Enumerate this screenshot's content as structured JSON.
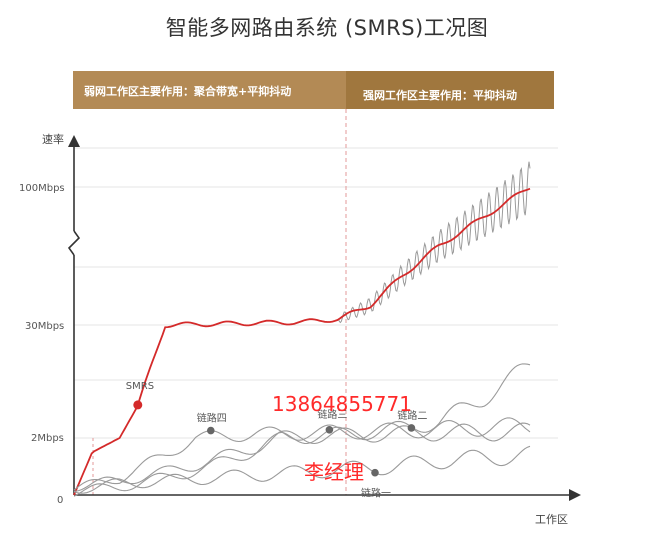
{
  "title": "智能多网路由系统 (SMRS)工况图",
  "bands": {
    "left": "弱网工作区主要作用：聚合带宽+平抑抖动",
    "right": "强网工作区主要作用：平抑抖动"
  },
  "watermark": {
    "phone": "13864855771",
    "name": "李经理"
  },
  "colors": {
    "smrs": "#d42a2a",
    "link": "#9a9a9a",
    "band_left": "#b38a55",
    "band_right": "#a0773e",
    "divider": "#e39a9a"
  },
  "chart_data": {
    "type": "line",
    "title": "智能多网路由系统 (SMRS)工况图",
    "xlabel": "工作区",
    "ylabel": "速率",
    "y_ticks": [
      "0",
      "2Mbps",
      "30Mbps",
      "100Mbps"
    ],
    "y_axis_broken": true,
    "divider_x": 0.58,
    "series": [
      {
        "name": "SMRS",
        "color": "#d42a2a",
        "x": [
          0.0,
          0.04,
          0.1,
          0.14,
          0.2,
          0.3,
          0.4,
          0.5,
          0.58,
          0.65,
          0.72,
          0.8,
          0.9,
          1.0
        ],
        "y": [
          0.0,
          1.5,
          2.0,
          10.0,
          30.0,
          30.5,
          31.0,
          31.5,
          33.0,
          40.0,
          55.0,
          70.0,
          85.0,
          100.0
        ]
      },
      {
        "name": "链路一",
        "color": "#9a9a9a",
        "x": [
          0.0,
          0.1,
          0.2,
          0.3,
          0.4,
          0.5,
          0.58,
          0.7,
          0.8,
          0.9,
          1.0
        ],
        "y": [
          0.2,
          0.4,
          0.5,
          0.6,
          0.7,
          0.8,
          0.9,
          1.0,
          1.2,
          1.3,
          1.4
        ]
      },
      {
        "name": "链路二",
        "color": "#9a9a9a",
        "x": [
          0.0,
          0.1,
          0.2,
          0.3,
          0.4,
          0.5,
          0.58,
          0.7,
          0.8,
          0.9,
          1.0
        ],
        "y": [
          0.3,
          0.5,
          0.8,
          1.2,
          1.7,
          2.3,
          2.6,
          3.0,
          3.3,
          3.4,
          3.5
        ]
      },
      {
        "name": "链路三",
        "color": "#9a9a9a",
        "x": [
          0.0,
          0.1,
          0.2,
          0.3,
          0.4,
          0.5,
          0.58,
          0.7,
          0.8,
          0.9,
          1.0
        ],
        "y": [
          0.1,
          0.3,
          0.6,
          1.0,
          1.6,
          2.3,
          2.9,
          4.0,
          6.0,
          12.0,
          20.0
        ]
      },
      {
        "name": "链路四",
        "color": "#9a9a9a",
        "x": [
          0.0,
          0.1,
          0.2,
          0.3,
          0.4,
          0.5,
          0.58,
          0.7,
          0.8,
          0.9,
          1.0
        ],
        "y": [
          0.2,
          0.6,
          1.4,
          2.3,
          3.0,
          3.2,
          3.5,
          3.8,
          4.2,
          4.6,
          5.0
        ]
      }
    ],
    "markers": [
      {
        "label": "SMRS",
        "series": "SMRS",
        "x": 0.14
      },
      {
        "label": "链路四",
        "series": "链路四",
        "x": 0.3
      },
      {
        "label": "链路三",
        "series": "链路三",
        "x": 0.56
      },
      {
        "label": "链路二",
        "series": "链路二",
        "x": 0.74
      },
      {
        "label": "链路一",
        "series": "链路一",
        "x": 0.66
      }
    ]
  }
}
